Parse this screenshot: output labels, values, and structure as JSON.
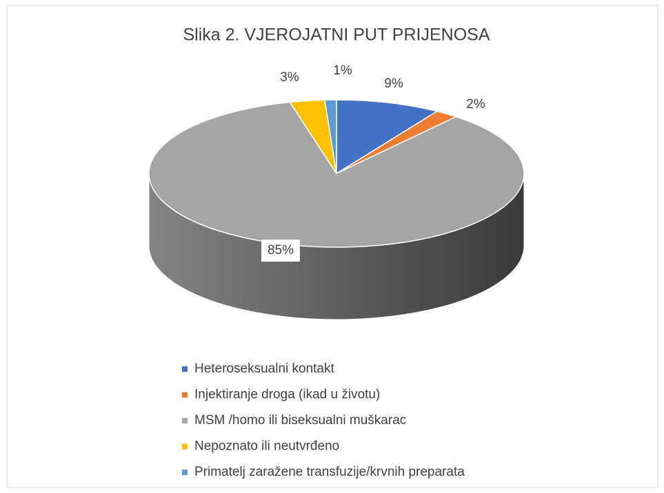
{
  "chart_data": {
    "type": "pie",
    "title": "Slika 2. VJEROJATNI PUT PRIJENOSA",
    "categories": [
      "Heteroseksualni kontakt",
      "Injektiranje droga (ikad u životu)",
      "MSM /homo ili biseksualni muškarac",
      "Nepoznato ili neutvrđeno",
      "Primatelj zaražene transfuzije/krvnih preparata"
    ],
    "values": [
      9,
      2,
      85,
      3,
      1
    ],
    "value_labels": [
      "9%",
      "2%",
      "85%",
      "3%",
      "1%"
    ],
    "colors": [
      "#4472c4",
      "#ed7d31",
      "#a5a5a5",
      "#ffc000",
      "#5b9bd5"
    ],
    "legend": "bottom"
  }
}
